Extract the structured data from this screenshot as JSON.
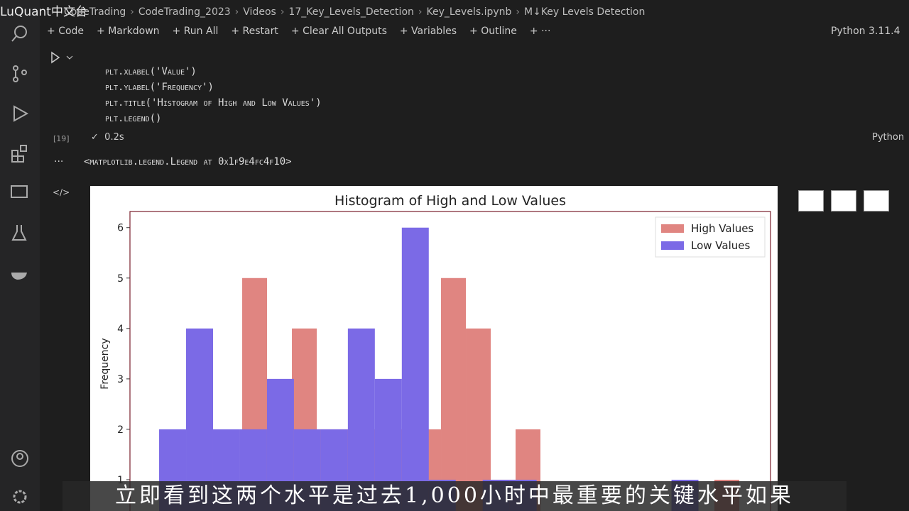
{
  "watermark": "LuQuant中文台",
  "breadcrumb": [
    "CodeTrading",
    "CodeTrading_2023",
    "Videos",
    "17_Key_Levels_Detection",
    "Key_Levels.ipynb",
    "M↓Key Levels Detection"
  ],
  "toolbar": [
    "Code",
    "Markdown",
    "Run All",
    "Restart",
    "Clear All Outputs",
    "Variables",
    "Outline",
    "···"
  ],
  "kernel": "Python 3.11.4",
  "code_lines": [
    "plt.xlabel('Value')",
    "plt.ylabel('Frequency')",
    "plt.title('Histogram of High and Low Values')",
    "plt.legend()"
  ],
  "cell": {
    "count": "[19]",
    "time": "0.2s",
    "language": "Python"
  },
  "output_text": "<matplotlib.legend.Legend at 0x1f9e4fc4f10>",
  "caption": "立即看到这两个水平是过去1,000小时中最重要的关键水平如果",
  "chart_data": {
    "type": "histogram",
    "title": "Histogram of High and Low Values",
    "y_label": "Frequency",
    "xlim": [
      0,
      100
    ],
    "ylim": [
      0,
      6.32
    ],
    "yticks": [
      1,
      2,
      3,
      4,
      5,
      6
    ],
    "legend": "upper right",
    "series": [
      {
        "name": "High Values",
        "color": "#e08581",
        "bins": [
          17.52,
          21.4,
          25.28,
          29.16,
          33.04,
          36.92,
          40.8,
          44.68,
          48.56,
          52.44,
          56.32,
          60.2,
          64.08,
          67.96,
          71.84,
          75.72,
          79.6,
          83.48,
          87.36,
          91.24,
          95.12
        ],
        "values": [
          5,
          2,
          4,
          2,
          2,
          2,
          2,
          2,
          5,
          4,
          1,
          2,
          0,
          0,
          0,
          0,
          0,
          0,
          0,
          1
        ]
      },
      {
        "name": "Low Values",
        "color": "#7b6ae6",
        "bins": [
          4.55,
          8.76,
          12.97,
          17.18,
          21.39,
          25.6,
          29.81,
          34.02,
          38.23,
          42.44,
          46.65,
          50.86,
          55.07,
          59.28,
          63.49,
          67.7,
          71.91,
          76.12,
          80.33,
          84.54,
          88.75
        ],
        "values": [
          2,
          4,
          2,
          2,
          3,
          2,
          2,
          4,
          3,
          6,
          1,
          0,
          1,
          1,
          0,
          0,
          0,
          0,
          0,
          1
        ]
      }
    ]
  }
}
